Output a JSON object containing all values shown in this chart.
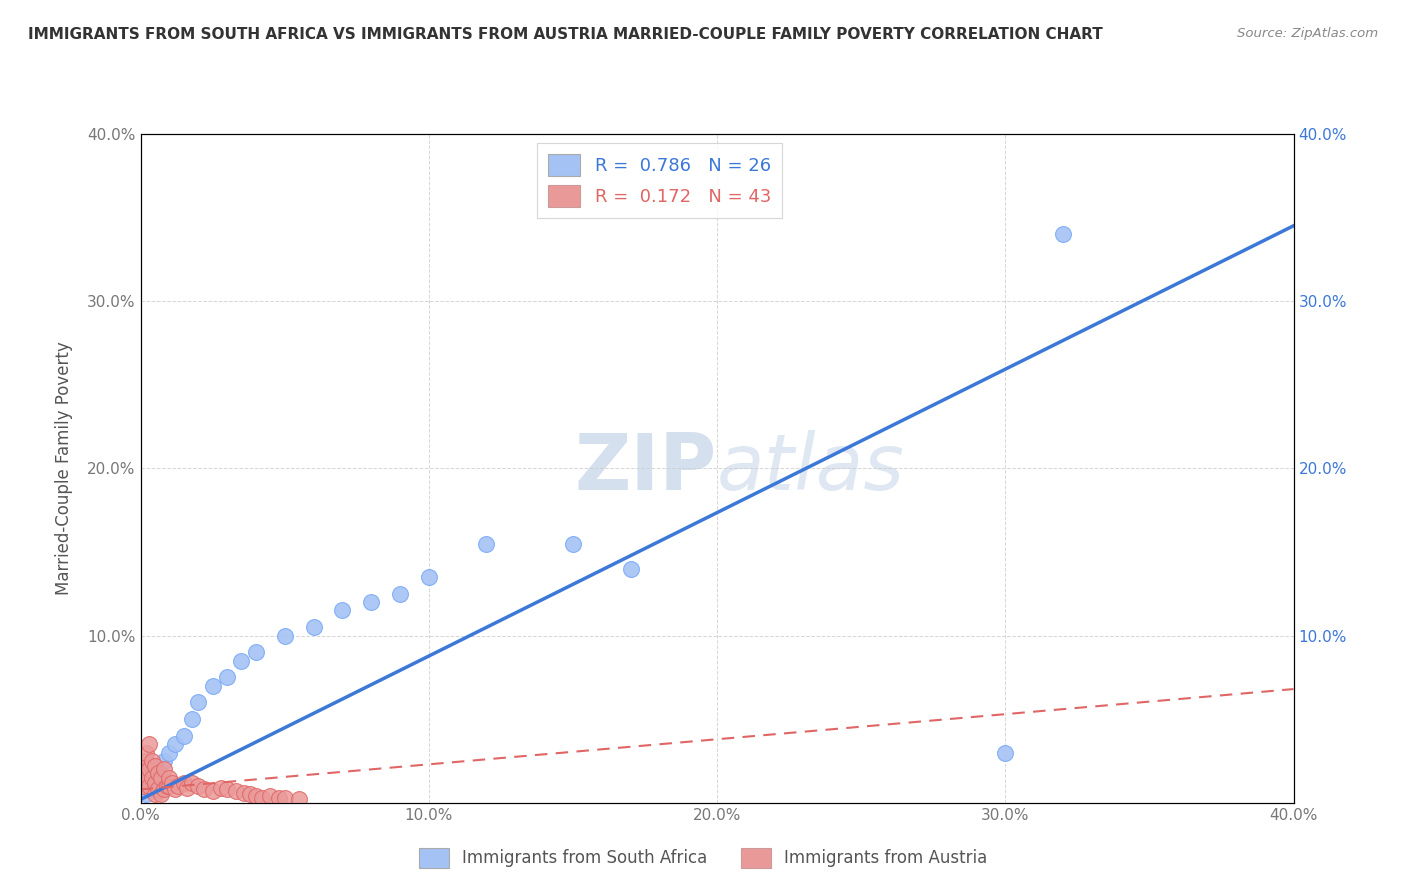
{
  "title": "IMMIGRANTS FROM SOUTH AFRICA VS IMMIGRANTS FROM AUSTRIA MARRIED-COUPLE FAMILY POVERTY CORRELATION CHART",
  "source": "Source: ZipAtlas.com",
  "ylabel": "Married-Couple Family Poverty",
  "xlim": [
    0,
    0.4
  ],
  "ylim": [
    0,
    0.4
  ],
  "xticks": [
    0.0,
    0.1,
    0.2,
    0.3,
    0.4
  ],
  "yticks": [
    0.0,
    0.1,
    0.2,
    0.3,
    0.4
  ],
  "xtick_labels": [
    "0.0%",
    "10.0%",
    "20.0%",
    "30.0%",
    "40.0%"
  ],
  "ytick_labels_left": [
    "",
    "10.0%",
    "20.0%",
    "30.0%",
    "40.0%"
  ],
  "ytick_labels_right": [
    "",
    "10.0%",
    "20.0%",
    "30.0%",
    "40.0%"
  ],
  "series1_color": "#a4c2f4",
  "series2_color": "#ea9999",
  "line1_color": "#3c78d8",
  "line2_color": "#e06666",
  "R1": 0.786,
  "N1": 26,
  "R2": 0.172,
  "N2": 43,
  "legend_label1": "Immigrants from South Africa",
  "legend_label2": "Immigrants from Austria",
  "watermark": "ZIPatlas",
  "background_color": "#ffffff",
  "grid_color": "#cccccc",
  "south_africa_x": [
    0.002,
    0.003,
    0.004,
    0.005,
    0.006,
    0.008,
    0.01,
    0.012,
    0.015,
    0.018,
    0.02,
    0.025,
    0.03,
    0.035,
    0.04,
    0.05,
    0.06,
    0.07,
    0.08,
    0.09,
    0.1,
    0.12,
    0.15,
    0.17,
    0.32,
    0.3
  ],
  "south_africa_y": [
    0.005,
    0.008,
    0.01,
    0.015,
    0.02,
    0.025,
    0.03,
    0.035,
    0.04,
    0.05,
    0.06,
    0.07,
    0.075,
    0.085,
    0.09,
    0.1,
    0.105,
    0.115,
    0.12,
    0.125,
    0.135,
    0.155,
    0.155,
    0.14,
    0.34,
    0.03
  ],
  "austria_x": [
    0.001,
    0.001,
    0.001,
    0.002,
    0.002,
    0.002,
    0.003,
    0.003,
    0.003,
    0.004,
    0.004,
    0.005,
    0.005,
    0.005,
    0.006,
    0.006,
    0.007,
    0.007,
    0.008,
    0.008,
    0.009,
    0.01,
    0.01,
    0.011,
    0.012,
    0.013,
    0.015,
    0.016,
    0.018,
    0.02,
    0.022,
    0.025,
    0.028,
    0.03,
    0.033,
    0.036,
    0.038,
    0.04,
    0.042,
    0.045,
    0.048,
    0.05,
    0.055
  ],
  "austria_y": [
    0.01,
    0.015,
    0.02,
    0.015,
    0.025,
    0.03,
    0.01,
    0.02,
    0.035,
    0.015,
    0.025,
    0.005,
    0.012,
    0.022,
    0.008,
    0.018,
    0.005,
    0.015,
    0.008,
    0.02,
    0.01,
    0.01,
    0.015,
    0.012,
    0.008,
    0.01,
    0.012,
    0.009,
    0.012,
    0.01,
    0.008,
    0.007,
    0.009,
    0.008,
    0.007,
    0.006,
    0.005,
    0.004,
    0.003,
    0.004,
    0.003,
    0.003,
    0.002
  ],
  "line1_x0": 0.0,
  "line1_y0": 0.002,
  "line1_x1": 0.4,
  "line1_y1": 0.345,
  "line2_x0": 0.0,
  "line2_y0": 0.008,
  "line2_x1": 0.4,
  "line2_y1": 0.068
}
